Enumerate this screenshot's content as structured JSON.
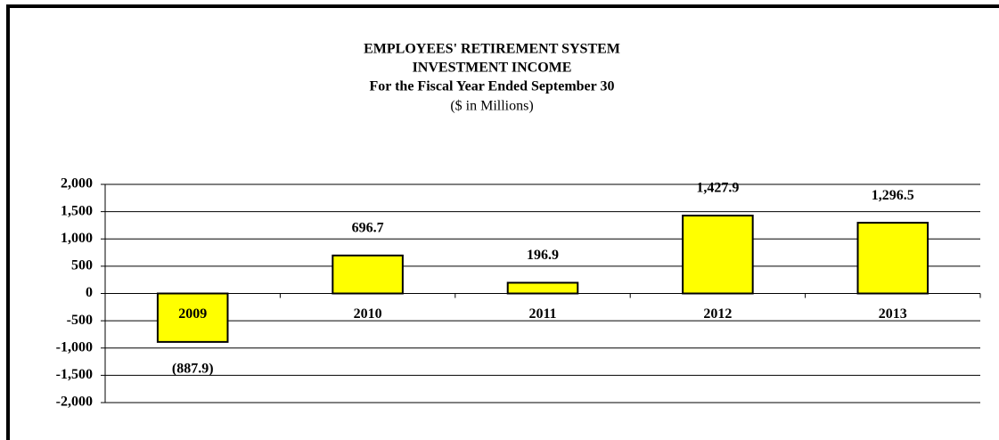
{
  "chart_data": {
    "type": "bar",
    "title": [
      "EMPLOYEES' RETIREMENT SYSTEM",
      "INVESTMENT INCOME",
      "For the Fiscal Year Ended September 30"
    ],
    "subtitle": "($ in Millions)",
    "categories": [
      "2009",
      "2010",
      "2011",
      "2012",
      "2013"
    ],
    "values": [
      -887.9,
      696.7,
      196.9,
      1427.9,
      1296.5
    ],
    "value_labels": [
      "(887.9)",
      "696.7",
      "196.9",
      "1,427.9",
      "1,296.5"
    ],
    "color": "#ffff00",
    "ylim": [
      -2000,
      2000
    ],
    "yticks": [
      {
        "value": -2000,
        "label": "-2,000"
      },
      {
        "value": -1500,
        "label": "-1,500"
      },
      {
        "value": -1000,
        "label": "-1,000"
      },
      -500,
      0,
      500,
      {
        "value": 1000,
        "label": "1,000"
      },
      {
        "value": 1500,
        "label": "1,500"
      },
      {
        "value": 2000,
        "label": "2,000"
      }
    ],
    "grid": true
  }
}
